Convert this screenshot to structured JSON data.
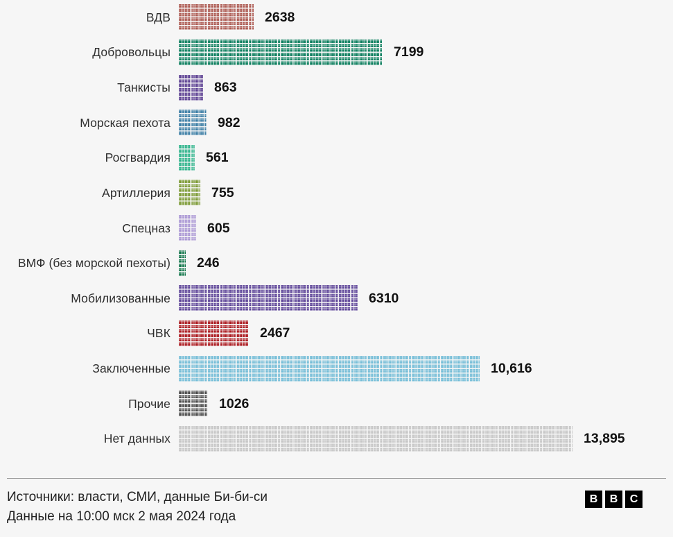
{
  "page": {
    "background": "#f6f6f6"
  },
  "chart_data": {
    "type": "bar",
    "orientation": "horizontal",
    "unit_style": "pictogram-waffle",
    "title": "",
    "xlabel": "",
    "ylabel": "",
    "xlim": [
      0,
      14000
    ],
    "grid": false,
    "legend": "none",
    "categories": [
      "ВДВ",
      "Добровольцы",
      "Танкисты",
      "Морская пехота",
      "Росгвардия",
      "Артиллерия",
      "Спецназ",
      "ВМФ (без морской пехоты)",
      "Мобилизованные",
      "ЧВК",
      "Заключенные",
      "Прочие",
      "Нет данных"
    ],
    "values": [
      2638,
      7199,
      863,
      982,
      561,
      755,
      605,
      246,
      6310,
      2467,
      10616,
      1026,
      13895
    ],
    "value_labels": [
      "2638",
      "7199",
      "863",
      "982",
      "561",
      "755",
      "605",
      "246",
      "6310",
      "2467",
      "10,616",
      "1026",
      "13,895"
    ],
    "colors": [
      "#ad5a52",
      "#0f8060",
      "#5a3d91",
      "#3d7fa6",
      "#2cb38a",
      "#7d9b36",
      "#a995d4",
      "#17794f",
      "#5f4699",
      "#ad1d23",
      "#74bdd7",
      "#4d4d4d",
      "#c6c6c6"
    ]
  },
  "rows": [
    {
      "label": "ВДВ",
      "value": 2638,
      "value_label": "2638",
      "color": "#ad5a52"
    },
    {
      "label": "Добровольцы",
      "value": 7199,
      "value_label": "7199",
      "color": "#0f8060"
    },
    {
      "label": "Танкисты",
      "value": 863,
      "value_label": "863",
      "color": "#5a3d91"
    },
    {
      "label": "Морская пехота",
      "value": 982,
      "value_label": "982",
      "color": "#3d7fa6"
    },
    {
      "label": "Росгвардия",
      "value": 561,
      "value_label": "561",
      "color": "#2cb38a"
    },
    {
      "label": "Артиллерия",
      "value": 755,
      "value_label": "755",
      "color": "#7d9b36"
    },
    {
      "label": "Спецназ",
      "value": 605,
      "value_label": "605",
      "color": "#a995d4"
    },
    {
      "label": "ВМФ (без морской пехоты)",
      "value": 246,
      "value_label": "246",
      "color": "#17794f"
    },
    {
      "label": "Мобилизованные",
      "value": 6310,
      "value_label": "6310",
      "color": "#5f4699"
    },
    {
      "label": "ЧВК",
      "value": 2467,
      "value_label": "2467",
      "color": "#ad1d23"
    },
    {
      "label": "Заключенные",
      "value": 10616,
      "value_label": "10,616",
      "color": "#74bdd7"
    },
    {
      "label": "Прочие",
      "value": 1026,
      "value_label": "1026",
      "color": "#4d4d4d"
    },
    {
      "label": "Нет данных",
      "value": 13895,
      "value_label": "13,895",
      "color": "#c6c6c6"
    }
  ],
  "footer": {
    "source_line": "Источники: власти, СМИ, данные Би-би-си",
    "date_line": "Данные на 10:00 мск 2 мая 2024 года",
    "logo_letters": [
      "B",
      "B",
      "C"
    ]
  }
}
